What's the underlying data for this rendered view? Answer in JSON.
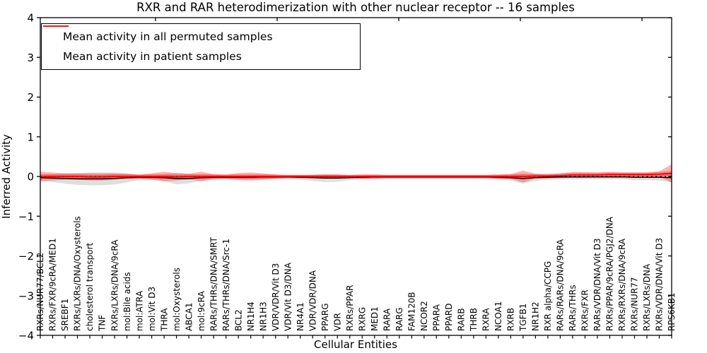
{
  "chart_data": {
    "type": "line",
    "title": "RXR and RAR heterodimerization with other nuclear receptor -- 16 samples",
    "xlabel": "Cellular Entities",
    "ylabel": "Inferred Activity",
    "ylim": [
      -4,
      4
    ],
    "yticks": [
      4,
      3,
      2,
      1,
      0,
      -1,
      -2,
      -3,
      -4
    ],
    "grid": false,
    "legend": {
      "position": "upper left",
      "entries": [
        {
          "label": "Mean activity in all permuted samples",
          "color": "#000000"
        },
        {
          "label": "Mean activity in patient samples",
          "color": "#ff0000"
        }
      ]
    },
    "categories": [
      "RXRs/NUR77/BCL2",
      "RXRs/FXR/9cRA/MED1",
      "SREBF1",
      "RXRs/LXRs/DNA/Oxysterols",
      "cholesterol transport",
      "TNF",
      "RXRs/LXRs/DNA/9cRA",
      "mol:Bile acids",
      "mol:ATRA",
      "mol:Vit D3",
      "THRA",
      "mol:Oxysterols",
      "ABCA1",
      "mol:9cRA",
      "RARs/THRs/DNA/SMRT",
      "RARs/THRs/DNA/Src-1",
      "BCL2",
      "NR1H4",
      "NR1H3",
      "VDR/VDR/Vit D3",
      "VDR/Vit D3/DNA",
      "NR4A1",
      "VDR/VDR/DNA",
      "PPARG",
      "VDR",
      "RXRs/PPAR",
      "RXRG",
      "MED1",
      "RARA",
      "RARG",
      "FAM120B",
      "NCOR2",
      "PPARA",
      "PPARD",
      "RARB",
      "THRB",
      "RXRA",
      "NCOA1",
      "RXRB",
      "TGFB1",
      "NR1H2",
      "RXR alpha/CCPG",
      "RARs/RARs/DNA/9cRA",
      "RARs/THRs",
      "RXRs/FXR",
      "RARs/VDR/DNA/Vit D3",
      "RXRs/PPAR/9cRA/PGJ2/DNA",
      "RXRs/RXRs/DNA/9cRA",
      "RXRs/NUR77",
      "RXRs/LXRs/DNA",
      "RXRs/VDR/DNA/Vit D3",
      "RPS6KB1"
    ],
    "series": [
      {
        "name": "Mean activity in all permuted samples",
        "color": "#000000",
        "band_alpha": 0.13,
        "values": [
          -0.03,
          -0.04,
          -0.05,
          -0.06,
          -0.06,
          -0.06,
          -0.05,
          -0.03,
          -0.02,
          -0.02,
          -0.03,
          -0.05,
          -0.05,
          -0.03,
          -0.02,
          -0.02,
          -0.02,
          -0.02,
          -0.01,
          -0.01,
          -0.01,
          -0.02,
          -0.03,
          -0.04,
          -0.04,
          -0.03,
          -0.02,
          -0.01,
          -0.01,
          -0.01,
          -0.01,
          -0.01,
          -0.01,
          -0.01,
          -0.01,
          -0.01,
          -0.01,
          -0.02,
          -0.03,
          -0.05,
          -0.03,
          -0.02,
          -0.01,
          -0.01,
          -0.01,
          -0.01,
          -0.01,
          -0.01,
          -0.02,
          -0.02,
          -0.02,
          -0.03
        ],
        "std": [
          0.08,
          0.1,
          0.13,
          0.15,
          0.16,
          0.16,
          0.15,
          0.12,
          0.06,
          0.06,
          0.09,
          0.15,
          0.12,
          0.08,
          0.06,
          0.05,
          0.05,
          0.05,
          0.05,
          0.05,
          0.05,
          0.06,
          0.08,
          0.1,
          0.09,
          0.06,
          0.05,
          0.05,
          0.05,
          0.05,
          0.05,
          0.05,
          0.05,
          0.05,
          0.05,
          0.05,
          0.05,
          0.06,
          0.07,
          0.13,
          0.08,
          0.06,
          0.06,
          0.06,
          0.06,
          0.06,
          0.06,
          0.06,
          0.07,
          0.07,
          0.08,
          0.12
        ]
      },
      {
        "name": "Mean activity in patient samples",
        "color": "#ff0000",
        "band_alpha": 0.3,
        "values": [
          0.0,
          0.0,
          0.0,
          0.0,
          -0.01,
          -0.01,
          0.0,
          0.0,
          0.0,
          0.0,
          0.0,
          -0.01,
          0.0,
          0.0,
          0.0,
          0.0,
          0.0,
          0.0,
          0.0,
          0.0,
          0.0,
          0.0,
          0.0,
          0.0,
          0.0,
          0.0,
          0.0,
          0.0,
          0.0,
          0.0,
          0.0,
          0.0,
          0.0,
          0.0,
          0.0,
          0.0,
          0.0,
          0.0,
          0.0,
          0.0,
          0.01,
          0.01,
          0.02,
          0.04,
          0.04,
          0.04,
          0.05,
          0.05,
          0.05,
          0.05,
          0.06,
          0.08
        ],
        "std": [
          0.12,
          0.1,
          0.08,
          0.08,
          0.09,
          0.09,
          0.08,
          0.06,
          0.05,
          0.08,
          0.12,
          0.09,
          0.07,
          0.12,
          0.06,
          0.05,
          0.09,
          0.1,
          0.08,
          0.05,
          0.04,
          0.04,
          0.04,
          0.05,
          0.05,
          0.04,
          0.05,
          0.05,
          0.04,
          0.04,
          0.04,
          0.04,
          0.04,
          0.04,
          0.04,
          0.04,
          0.04,
          0.05,
          0.06,
          0.15,
          0.06,
          0.05,
          0.06,
          0.07,
          0.07,
          0.06,
          0.06,
          0.05,
          0.05,
          0.05,
          0.07,
          0.23
        ]
      }
    ],
    "zero_line": {
      "style": "dotted",
      "color": "#000000",
      "y": 0
    }
  }
}
